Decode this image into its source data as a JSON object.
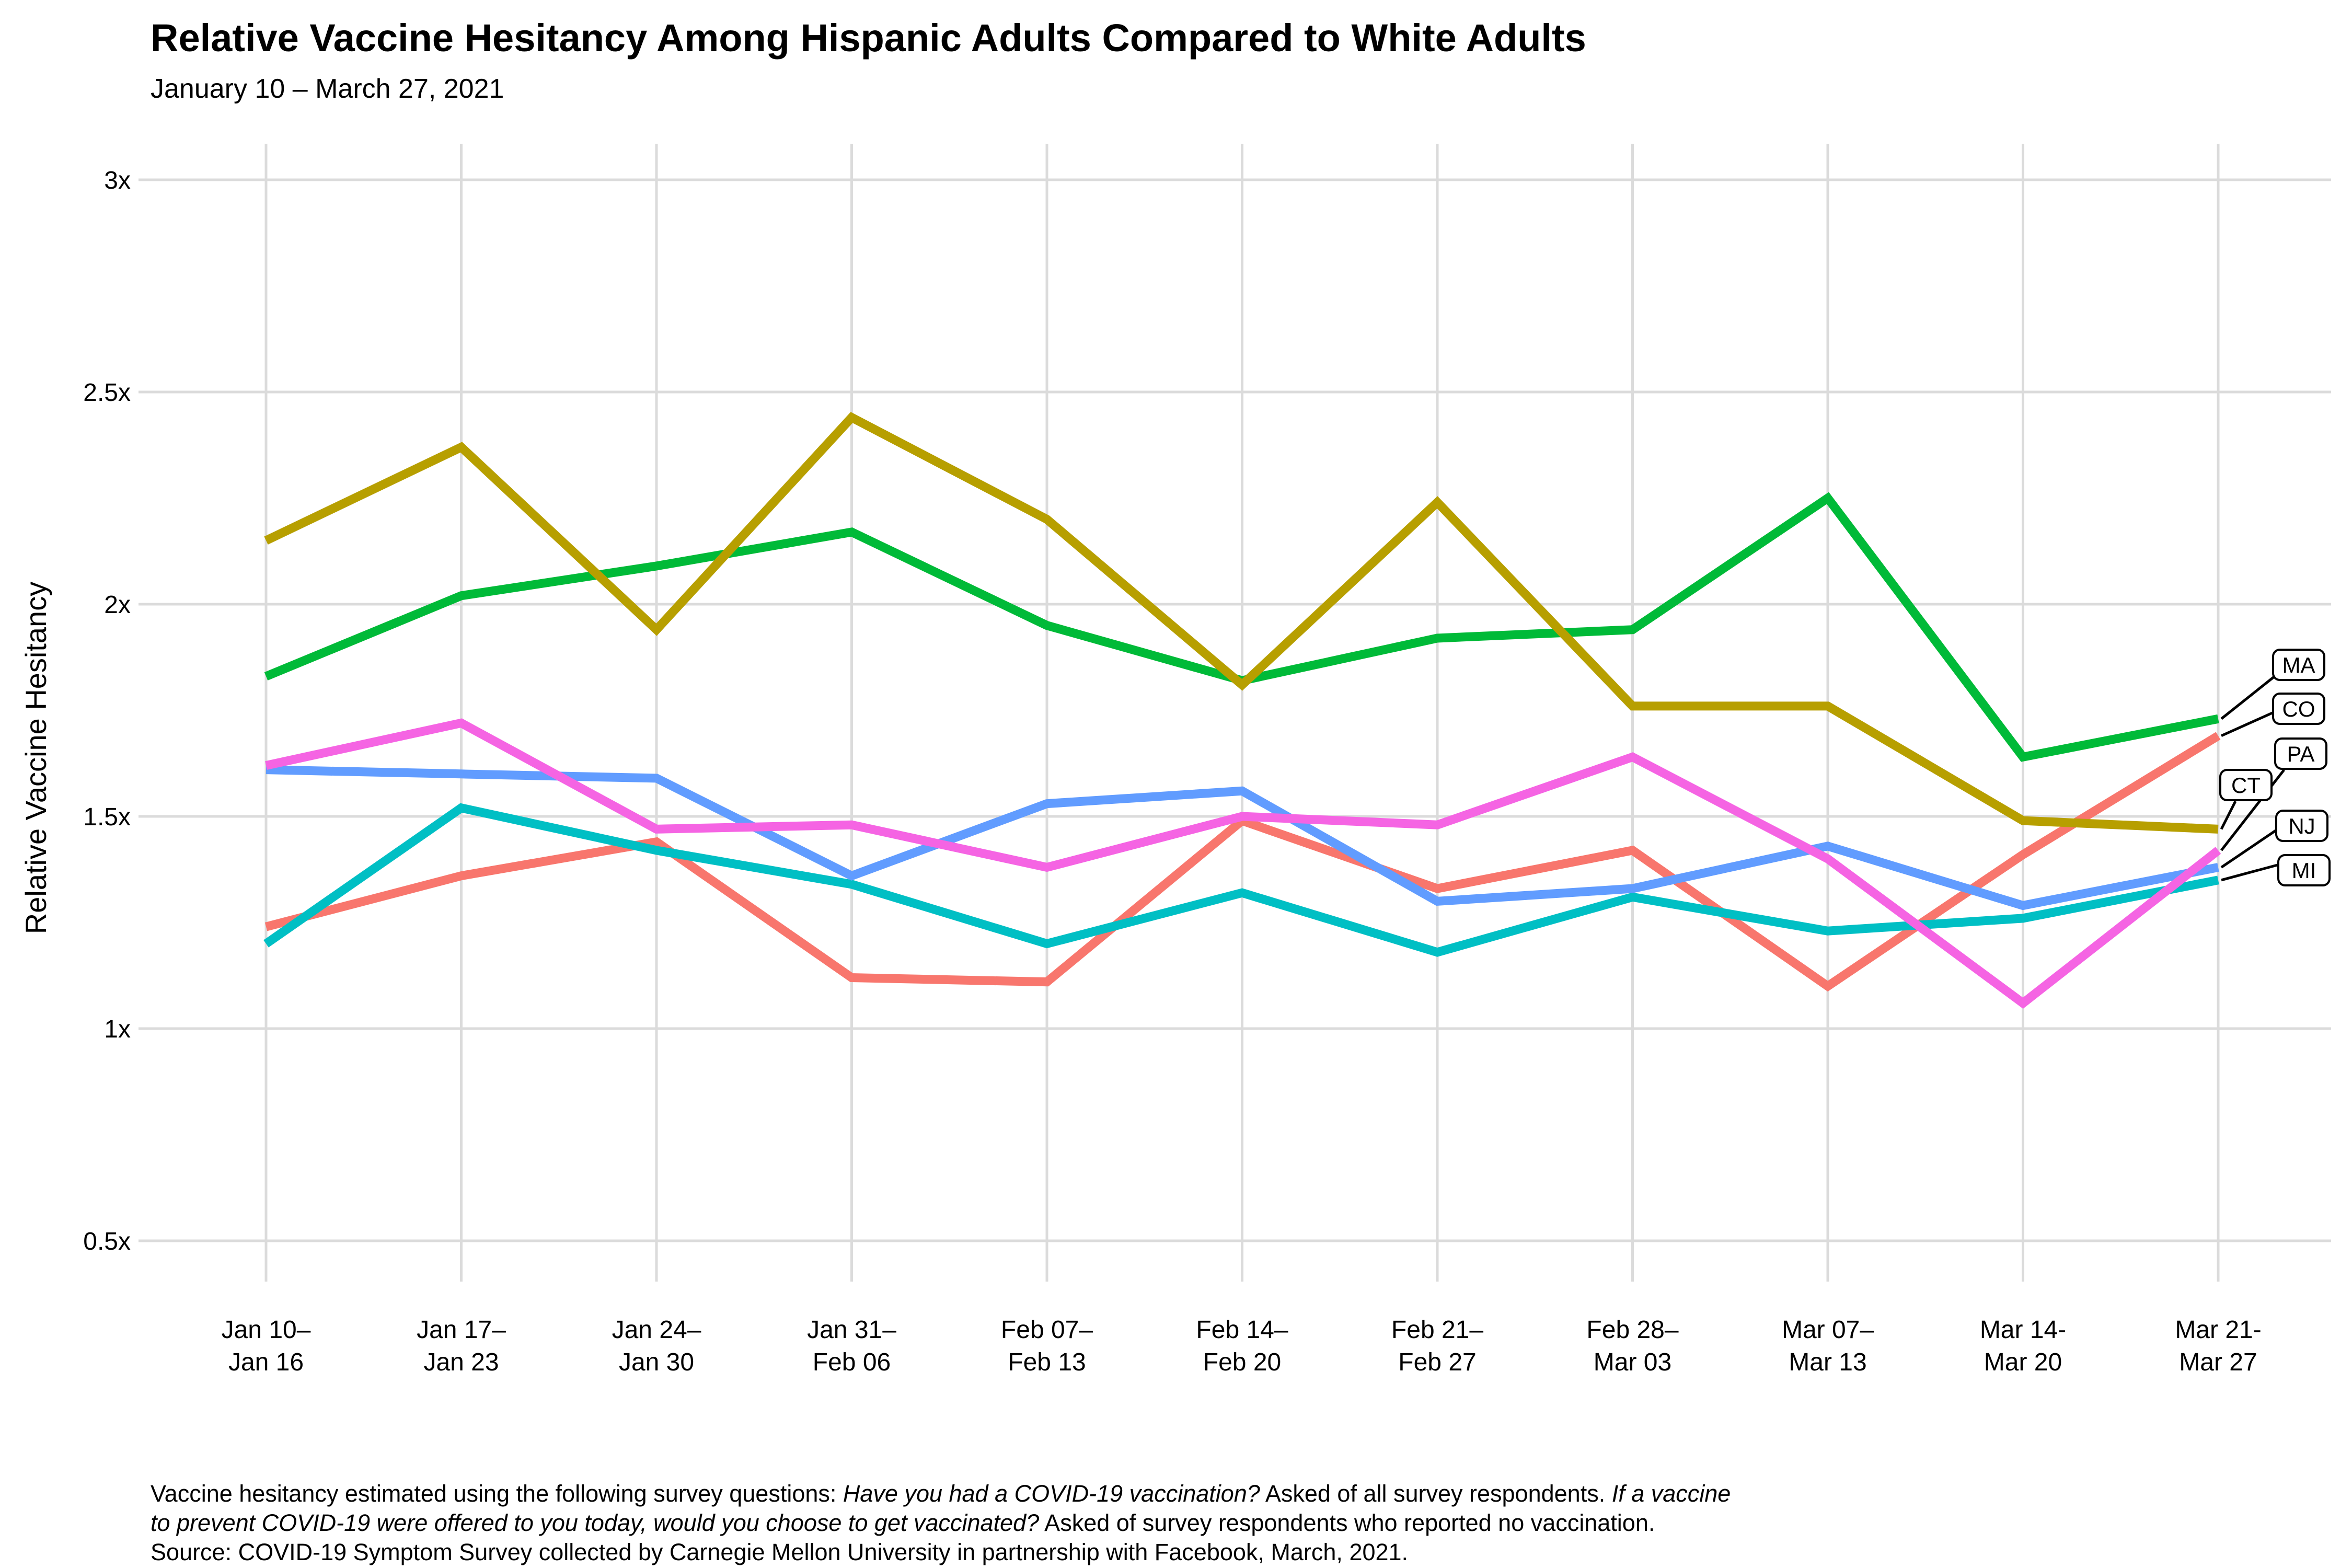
{
  "header": {
    "title": "Relative Vaccine Hesitancy Among Hispanic Adults Compared to White Adults",
    "subtitle": "January 10 – March 27, 2021"
  },
  "y_axis": {
    "title": "Relative Vaccine Hesitancy",
    "ticks": [
      {
        "label": "3x",
        "value": 3.0
      },
      {
        "label": "2.5x",
        "value": 2.5
      },
      {
        "label": "2x",
        "value": 2.0
      },
      {
        "label": "1.5x",
        "value": 1.5
      },
      {
        "label": "1x",
        "value": 1.0
      },
      {
        "label": "0.5x",
        "value": 0.5
      }
    ]
  },
  "x_axis": {
    "ticks": [
      {
        "line1": "Jan 10–",
        "line2": "Jan 16"
      },
      {
        "line1": "Jan 17–",
        "line2": "Jan 23"
      },
      {
        "line1": "Jan 24–",
        "line2": "Jan 30"
      },
      {
        "line1": "Jan 31–",
        "line2": "Feb 06"
      },
      {
        "line1": "Feb 07–",
        "line2": "Feb 13"
      },
      {
        "line1": "Feb 14–",
        "line2": "Feb 20"
      },
      {
        "line1": "Feb 21–",
        "line2": "Feb 27"
      },
      {
        "line1": "Feb 28–",
        "line2": "Mar 03"
      },
      {
        "line1": "Mar 07–",
        "line2": "Mar 13"
      },
      {
        "line1": "Mar 14-",
        "line2": "Mar 20"
      },
      {
        "line1": "Mar 21-",
        "line2": "Mar 27"
      }
    ]
  },
  "chart_data": {
    "type": "line",
    "title": "Relative Vaccine Hesitancy Among Hispanic Adults Compared to White Adults",
    "subtitle": "January 10 – March 27, 2021",
    "xlabel": "",
    "ylabel": "Relative Vaccine Hesitancy",
    "ylim": [
      0.5,
      3.0
    ],
    "grid": true,
    "legend_position": "right-end-labels",
    "categories": [
      "Jan 10–Jan 16",
      "Jan 17–Jan 23",
      "Jan 24–Jan 30",
      "Jan 31–Feb 06",
      "Feb 07–Feb 13",
      "Feb 14–Feb 20",
      "Feb 21–Feb 27",
      "Feb 28–Mar 03",
      "Mar 07–Mar 13",
      "Mar 14-Mar 20",
      "Mar 21-Mar 27"
    ],
    "series": [
      {
        "name": "CO",
        "color": "#F8766D",
        "values": [
          1.24,
          1.36,
          1.44,
          1.12,
          1.11,
          1.49,
          1.33,
          1.42,
          1.1,
          1.41,
          1.69
        ]
      },
      {
        "name": "MA",
        "color": "#00BA38",
        "values": [
          1.83,
          2.02,
          2.09,
          2.17,
          1.95,
          1.82,
          1.92,
          1.94,
          2.25,
          1.64,
          1.73
        ]
      },
      {
        "name": "CT",
        "color": "#B79F00",
        "values": [
          2.15,
          2.37,
          1.94,
          2.44,
          2.2,
          1.81,
          2.24,
          1.76,
          1.76,
          1.49,
          1.47
        ]
      },
      {
        "name": "MI",
        "color": "#00BFC4",
        "values": [
          1.2,
          1.52,
          1.42,
          1.34,
          1.2,
          1.32,
          1.18,
          1.31,
          1.23,
          1.26,
          1.35
        ]
      },
      {
        "name": "NJ",
        "color": "#619CFF",
        "values": [
          1.61,
          1.6,
          1.59,
          1.36,
          1.53,
          1.56,
          1.3,
          1.33,
          1.43,
          1.29,
          1.38
        ]
      },
      {
        "name": "PA",
        "color": "#F564E3",
        "values": [
          1.62,
          1.72,
          1.47,
          1.48,
          1.38,
          1.5,
          1.48,
          1.64,
          1.4,
          1.06,
          1.42
        ]
      }
    ],
    "end_labels": [
      "MA",
      "CO",
      "PA",
      "CT",
      "NJ",
      "MI"
    ]
  },
  "caption": {
    "lines": [
      [
        {
          "t": "Vaccine hesitancy estimated using the following survey questions: ",
          "i": false
        },
        {
          "t": "Have you had a COVID-19 vaccination?",
          "i": true
        },
        {
          "t": " Asked of all survey respondents. ",
          "i": false
        },
        {
          "t": "If a vaccine",
          "i": true
        }
      ],
      [
        {
          "t": "to prevent COVID-19 were offered to you today, would you choose to get vaccinated?",
          "i": true
        },
        {
          "t": " Asked of survey respondents who reported no vaccination.",
          "i": false
        }
      ],
      [
        {
          "t": "Source: COVID-19 Symptom Survey collected by Carnegie Mellon University in partnership with Facebook, March, 2021.",
          "i": false
        }
      ]
    ]
  },
  "colors": {
    "gridline": "#DBDBDB",
    "text": "#000000",
    "background": "#FFFFFF",
    "leader": "#000000"
  }
}
